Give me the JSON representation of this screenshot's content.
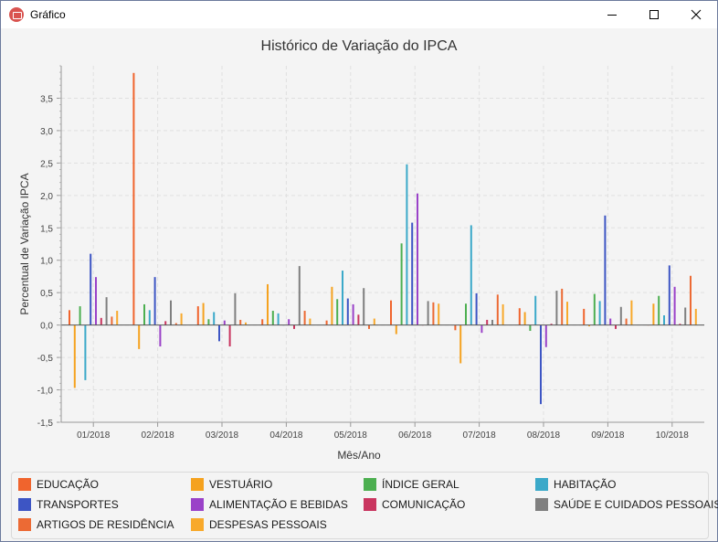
{
  "window": {
    "title": "Gráfico",
    "icon": "chart-app-icon",
    "controls": [
      "minimize-icon",
      "maximize-icon",
      "close-icon"
    ]
  },
  "chart_data": {
    "type": "bar",
    "title": "Histórico de Variação do IPCA",
    "xlabel": "Mês/Ano",
    "ylabel": "Percentual de Variação IPCA",
    "ylim": [
      -1.5,
      4.0
    ],
    "yticks": [
      "-1,5",
      "-1,0",
      "-0,5",
      "0,0",
      "0,5",
      "1,0",
      "1,5",
      "2,0",
      "2,5",
      "3,0",
      "3,5"
    ],
    "grid": true,
    "legend_position": "bottom",
    "categories": [
      "01/2018",
      "02/2018",
      "03/2018",
      "04/2018",
      "05/2018",
      "06/2018",
      "07/2018",
      "08/2018",
      "09/2018",
      "10/2018"
    ],
    "series": [
      {
        "name": "EDUCAÇÃO",
        "color": "#f0642d",
        "values": [
          0.23,
          3.89,
          0.29,
          0.09,
          0.07,
          0.38,
          -0.08,
          0.26,
          0.25,
          0.0
        ]
      },
      {
        "name": "VESTUÁRIO",
        "color": "#f5a21f",
        "values": [
          -0.97,
          -0.37,
          0.34,
          0.63,
          0.59,
          -0.14,
          -0.59,
          0.2,
          -0.02,
          0.33
        ]
      },
      {
        "name": "ÍNDICE GERAL",
        "color": "#4caf50",
        "values": [
          0.29,
          0.32,
          0.09,
          0.22,
          0.4,
          1.26,
          0.33,
          -0.09,
          0.48,
          0.45
        ]
      },
      {
        "name": "HABITAÇÃO",
        "color": "#3ba9c9",
        "values": [
          -0.85,
          0.23,
          0.2,
          0.18,
          0.84,
          2.48,
          1.54,
          0.45,
          0.37,
          0.15
        ]
      },
      {
        "name": "TRANSPORTES",
        "color": "#3d55c4",
        "values": [
          1.1,
          0.74,
          -0.25,
          0.0,
          0.41,
          1.58,
          0.49,
          -1.22,
          1.69,
          0.92
        ]
      },
      {
        "name": "ALIMENTAÇÃO E BEBIDAS",
        "color": "#9a42c8",
        "values": [
          0.74,
          -0.33,
          0.07,
          0.09,
          0.32,
          2.03,
          -0.12,
          -0.34,
          0.1,
          0.59
        ]
      },
      {
        "name": "COMUNICAÇÃO",
        "color": "#c9355f",
        "values": [
          0.11,
          0.06,
          -0.33,
          -0.06,
          0.16,
          0.0,
          0.08,
          0.02,
          -0.06,
          0.02
        ]
      },
      {
        "name": "SAÚDE E CUIDADOS PESSOAIS",
        "color": "#7f7f7f",
        "values": [
          0.43,
          0.38,
          0.49,
          0.91,
          0.57,
          0.37,
          0.08,
          0.53,
          0.28,
          0.27
        ]
      },
      {
        "name": "ARTIGOS DE RESIDÊNCIA",
        "color": "#ec6a34",
        "values": [
          0.13,
          0.03,
          0.08,
          0.22,
          -0.06,
          0.35,
          0.47,
          0.56,
          0.1,
          0.76
        ]
      },
      {
        "name": "DESPESAS PESSOAIS",
        "color": "#f8a92b",
        "values": [
          0.22,
          0.18,
          0.04,
          0.1,
          0.1,
          0.33,
          0.32,
          0.36,
          0.38,
          0.25
        ]
      }
    ]
  }
}
